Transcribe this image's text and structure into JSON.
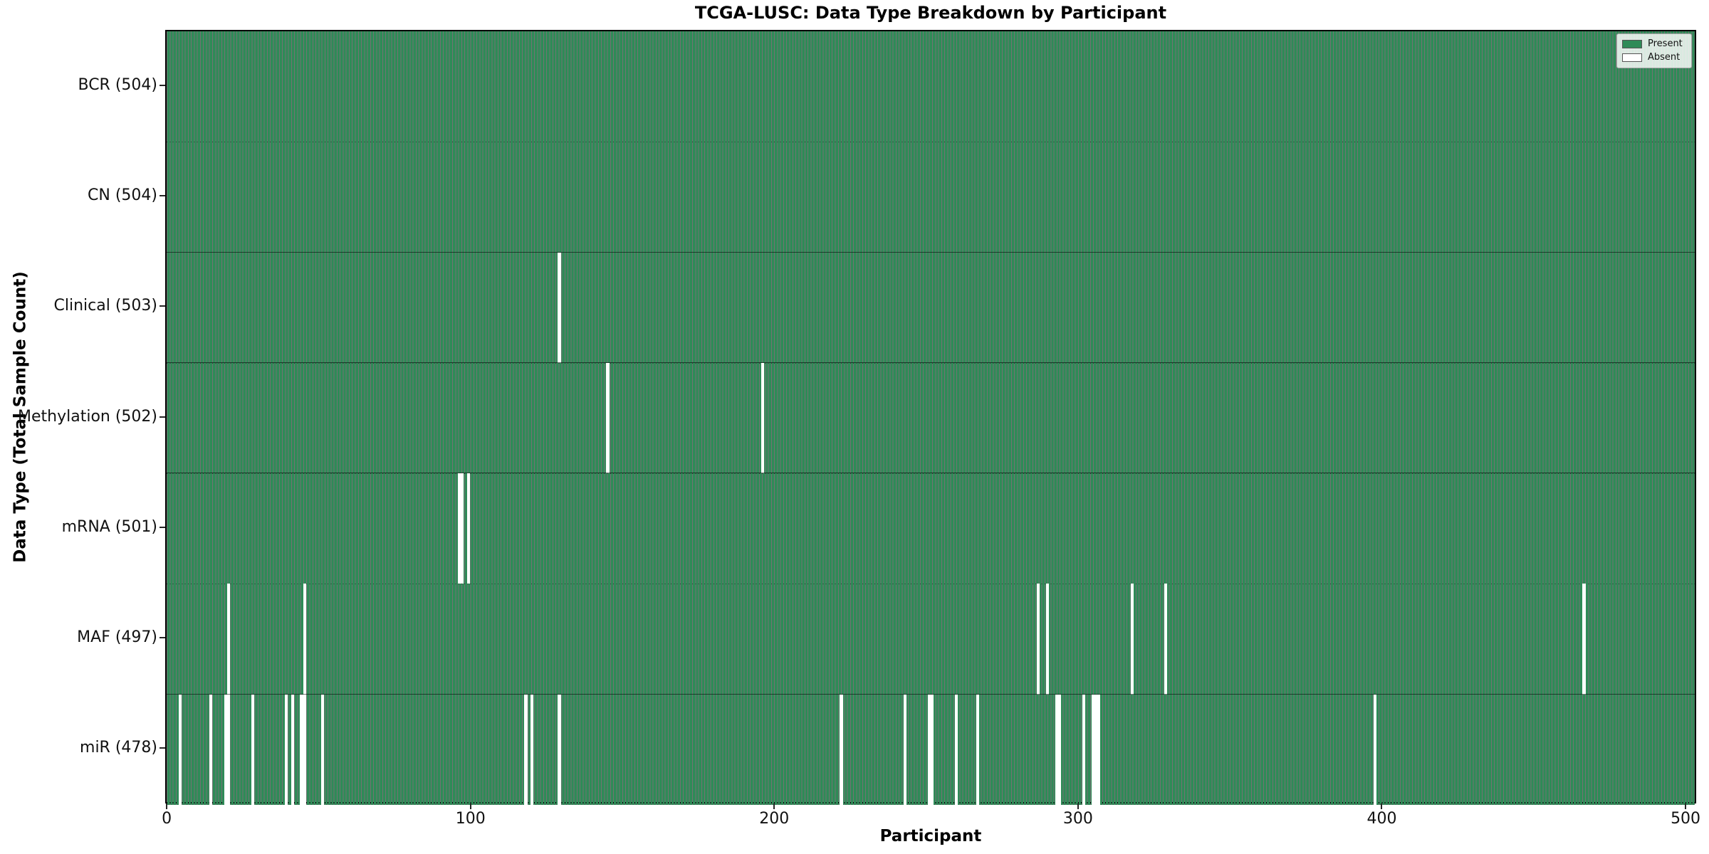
{
  "chart_data": {
    "type": "heatmap",
    "title": "TCGA-LUSC: Data Type Breakdown by Participant",
    "xlabel": "Participant",
    "ylabel": "Data Type (Total Sample Count)",
    "n_participants": 504,
    "x_ticks": [
      0,
      100,
      200,
      300,
      400,
      500
    ],
    "x_range": [
      -0.5,
      503.5
    ],
    "grid": false,
    "legend_position": "upper right",
    "legend": [
      {
        "label": "Present",
        "value": 1
      },
      {
        "label": "Absent",
        "value": 0
      }
    ],
    "colors": {
      "present": "#2e8b57",
      "absent": "#ffffff",
      "bar_edge": "rgba(0,0,0,0.55)"
    },
    "rows": [
      {
        "label": "BCR",
        "total": 504,
        "absent_participants": []
      },
      {
        "label": "CN",
        "total": 504,
        "absent_participants": []
      },
      {
        "label": "Clinical",
        "total": 503,
        "absent_participants": [
          129
        ]
      },
      {
        "label": "Methylation",
        "total": 502,
        "absent_participants": [
          145,
          196
        ]
      },
      {
        "label": "mRNA",
        "total": 501,
        "absent_participants": [
          96,
          97,
          99
        ]
      },
      {
        "label": "MAF",
        "total": 497,
        "absent_participants": [
          20,
          45,
          287,
          290,
          318,
          329,
          467
        ]
      },
      {
        "label": "miR",
        "total": 478,
        "absent_participants": [
          4,
          14,
          19,
          20,
          28,
          39,
          41,
          44,
          45,
          51,
          118,
          120,
          129,
          222,
          243,
          251,
          252,
          260,
          267,
          293,
          294,
          302,
          305,
          306,
          307,
          398
        ]
      }
    ],
    "row_label_format": "{label} ({total})"
  }
}
